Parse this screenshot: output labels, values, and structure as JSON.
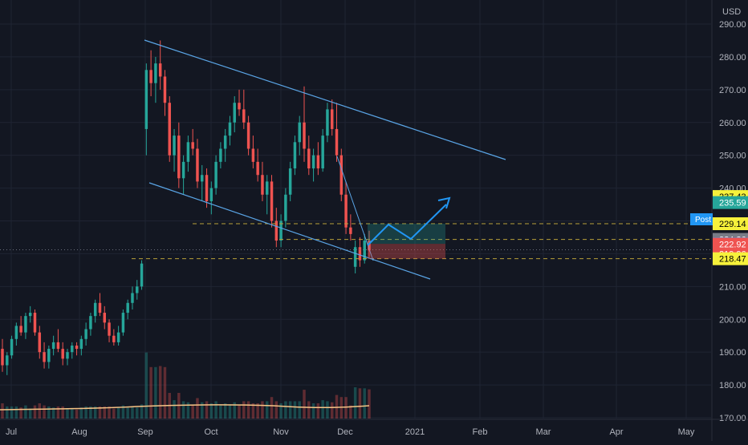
{
  "chart": {
    "currency": "USD",
    "post_label": "Post"
  },
  "colors": {
    "background": "#131722",
    "grid": "#1f2433",
    "axis_text": "#b2b5be",
    "up": "#26a69a",
    "down": "#ef5350",
    "channel": "#5aa5e6",
    "projection": "#2196f3",
    "yellow_badge": "#f6f13b",
    "green_badge": "#26a69a",
    "gray_badge": "#787b86",
    "blue_badge": "#2196f3",
    "red_badge": "#ef5350",
    "dashed_level": "#b8a03a",
    "sma": "#f7c486"
  },
  "chart_data": {
    "type": "candlestick",
    "x_ticks": [
      "Jul",
      "Aug",
      "Sep",
      "Oct",
      "Nov",
      "Dec",
      "2021",
      "Feb",
      "Mar",
      "Apr",
      "May"
    ],
    "y_ticks": [
      "290.00",
      "280.00",
      "270.00",
      "260.00",
      "250.00",
      "240.00",
      "230.00",
      "220.00",
      "210.00",
      "200.00",
      "190.00",
      "180.00",
      "170.00"
    ],
    "ylim": [
      170,
      293
    ],
    "price_labels": [
      {
        "value": 237.43,
        "text": "237.43",
        "style": "yellow"
      },
      {
        "value": 235.59,
        "text": "235.59",
        "style": "green"
      },
      {
        "value": 229.14,
        "text": "229.14",
        "style": "yellow"
      },
      {
        "value": 224.36,
        "text": "224.36",
        "style": "gray"
      },
      {
        "value": 223.01,
        "text": "223.01",
        "style": "blue"
      },
      {
        "value": 222.92,
        "text": "222.92",
        "style": "red"
      },
      {
        "value": 219.96,
        "text": "219.96",
        "style": "red"
      },
      {
        "value": 218.47,
        "text": "218.47",
        "style": "yellow"
      }
    ],
    "levels": [
      229.14,
      224.36,
      218.47
    ],
    "last_price_line": 221.2,
    "candles": [
      {
        "o": 191,
        "h": 194,
        "l": 184,
        "c": 186
      },
      {
        "o": 186,
        "h": 190,
        "l": 183,
        "c": 189
      },
      {
        "o": 189,
        "h": 195,
        "l": 188,
        "c": 194
      },
      {
        "o": 194,
        "h": 199,
        "l": 192,
        "c": 198
      },
      {
        "o": 198,
        "h": 201,
        "l": 195,
        "c": 196
      },
      {
        "o": 196,
        "h": 202,
        "l": 194,
        "c": 201
      },
      {
        "o": 201,
        "h": 204,
        "l": 199,
        "c": 202
      },
      {
        "o": 202,
        "h": 203,
        "l": 195,
        "c": 196
      },
      {
        "o": 196,
        "h": 198,
        "l": 188,
        "c": 190
      },
      {
        "o": 190,
        "h": 193,
        "l": 185,
        "c": 187
      },
      {
        "o": 187,
        "h": 192,
        "l": 185,
        "c": 191
      },
      {
        "o": 191,
        "h": 195,
        "l": 189,
        "c": 193
      },
      {
        "o": 193,
        "h": 197,
        "l": 190,
        "c": 191
      },
      {
        "o": 191,
        "h": 193,
        "l": 186,
        "c": 188
      },
      {
        "o": 188,
        "h": 191,
        "l": 186,
        "c": 190
      },
      {
        "o": 190,
        "h": 193,
        "l": 188,
        "c": 192
      },
      {
        "o": 192,
        "h": 193,
        "l": 189,
        "c": 191
      },
      {
        "o": 191,
        "h": 195,
        "l": 189,
        "c": 194
      },
      {
        "o": 194,
        "h": 199,
        "l": 192,
        "c": 197
      },
      {
        "o": 197,
        "h": 202,
        "l": 195,
        "c": 201
      },
      {
        "o": 201,
        "h": 206,
        "l": 199,
        "c": 205
      },
      {
        "o": 205,
        "h": 208,
        "l": 201,
        "c": 202
      },
      {
        "o": 202,
        "h": 204,
        "l": 197,
        "c": 199
      },
      {
        "o": 199,
        "h": 200,
        "l": 193,
        "c": 195
      },
      {
        "o": 195,
        "h": 197,
        "l": 192,
        "c": 193
      },
      {
        "o": 193,
        "h": 198,
        "l": 192,
        "c": 196
      },
      {
        "o": 196,
        "h": 203,
        "l": 195,
        "c": 202
      },
      {
        "o": 202,
        "h": 206,
        "l": 200,
        "c": 205
      },
      {
        "o": 205,
        "h": 210,
        "l": 203,
        "c": 208
      },
      {
        "o": 208,
        "h": 212,
        "l": 206,
        "c": 210
      },
      {
        "o": 210,
        "h": 218,
        "l": 209,
        "c": 217
      },
      {
        "o": 258,
        "h": 278,
        "l": 250,
        "c": 276
      },
      {
        "o": 276,
        "h": 282,
        "l": 268,
        "c": 272
      },
      {
        "o": 272,
        "h": 280,
        "l": 266,
        "c": 278
      },
      {
        "o": 278,
        "h": 285,
        "l": 270,
        "c": 274
      },
      {
        "o": 274,
        "h": 276,
        "l": 262,
        "c": 266
      },
      {
        "o": 266,
        "h": 268,
        "l": 248,
        "c": 250
      },
      {
        "o": 250,
        "h": 258,
        "l": 245,
        "c": 256
      },
      {
        "o": 256,
        "h": 260,
        "l": 240,
        "c": 243
      },
      {
        "o": 243,
        "h": 250,
        "l": 238,
        "c": 248
      },
      {
        "o": 248,
        "h": 256,
        "l": 245,
        "c": 254
      },
      {
        "o": 254,
        "h": 258,
        "l": 250,
        "c": 252
      },
      {
        "o": 252,
        "h": 255,
        "l": 240,
        "c": 242
      },
      {
        "o": 242,
        "h": 247,
        "l": 236,
        "c": 244
      },
      {
        "o": 244,
        "h": 246,
        "l": 234,
        "c": 236
      },
      {
        "o": 236,
        "h": 242,
        "l": 232,
        "c": 240
      },
      {
        "o": 240,
        "h": 250,
        "l": 238,
        "c": 248
      },
      {
        "o": 248,
        "h": 254,
        "l": 246,
        "c": 252
      },
      {
        "o": 252,
        "h": 258,
        "l": 248,
        "c": 256
      },
      {
        "o": 256,
        "h": 262,
        "l": 253,
        "c": 260
      },
      {
        "o": 260,
        "h": 268,
        "l": 257,
        "c": 266
      },
      {
        "o": 266,
        "h": 270,
        "l": 262,
        "c": 264
      },
      {
        "o": 264,
        "h": 270,
        "l": 258,
        "c": 260
      },
      {
        "o": 260,
        "h": 262,
        "l": 250,
        "c": 252
      },
      {
        "o": 252,
        "h": 256,
        "l": 246,
        "c": 248
      },
      {
        "o": 248,
        "h": 252,
        "l": 242,
        "c": 244
      },
      {
        "o": 244,
        "h": 248,
        "l": 236,
        "c": 238
      },
      {
        "o": 238,
        "h": 244,
        "l": 232,
        "c": 242
      },
      {
        "o": 242,
        "h": 244,
        "l": 228,
        "c": 230
      },
      {
        "o": 230,
        "h": 234,
        "l": 222,
        "c": 224
      },
      {
        "o": 224,
        "h": 232,
        "l": 222,
        "c": 230
      },
      {
        "o": 230,
        "h": 240,
        "l": 228,
        "c": 238
      },
      {
        "o": 238,
        "h": 248,
        "l": 236,
        "c": 246
      },
      {
        "o": 246,
        "h": 256,
        "l": 244,
        "c": 254
      },
      {
        "o": 254,
        "h": 262,
        "l": 250,
        "c": 260
      },
      {
        "o": 260,
        "h": 271,
        "l": 248,
        "c": 252
      },
      {
        "o": 252,
        "h": 256,
        "l": 244,
        "c": 246
      },
      {
        "o": 246,
        "h": 252,
        "l": 242,
        "c": 250
      },
      {
        "o": 250,
        "h": 254,
        "l": 244,
        "c": 246
      },
      {
        "o": 246,
        "h": 258,
        "l": 245,
        "c": 256
      },
      {
        "o": 256,
        "h": 266,
        "l": 254,
        "c": 264
      },
      {
        "o": 264,
        "h": 267,
        "l": 256,
        "c": 258
      },
      {
        "o": 258,
        "h": 266,
        "l": 248,
        "c": 250
      },
      {
        "o": 250,
        "h": 252,
        "l": 236,
        "c": 238
      },
      {
        "o": 238,
        "h": 242,
        "l": 226,
        "c": 228
      },
      {
        "o": 228,
        "h": 232,
        "l": 224,
        "c": 226
      },
      {
        "o": 216,
        "h": 224,
        "l": 214,
        "c": 222
      },
      {
        "o": 222,
        "h": 225,
        "l": 216,
        "c": 218
      },
      {
        "o": 218,
        "h": 226,
        "l": 217,
        "c": 224
      },
      {
        "o": 224,
        "h": 227,
        "l": 219,
        "c": 221
      }
    ]
  },
  "axes": {
    "x_labels": [
      "Jul",
      "Aug",
      "Sep",
      "Oct",
      "Nov",
      "Dec",
      "2021",
      "Feb",
      "Mar",
      "Apr",
      "May"
    ],
    "y_labels": [
      "290.00",
      "280.00",
      "270.00",
      "260.00",
      "250.00",
      "240.00",
      "230.00",
      "220.00",
      "210.00",
      "200.00",
      "190.00",
      "180.00",
      "170.00"
    ]
  }
}
